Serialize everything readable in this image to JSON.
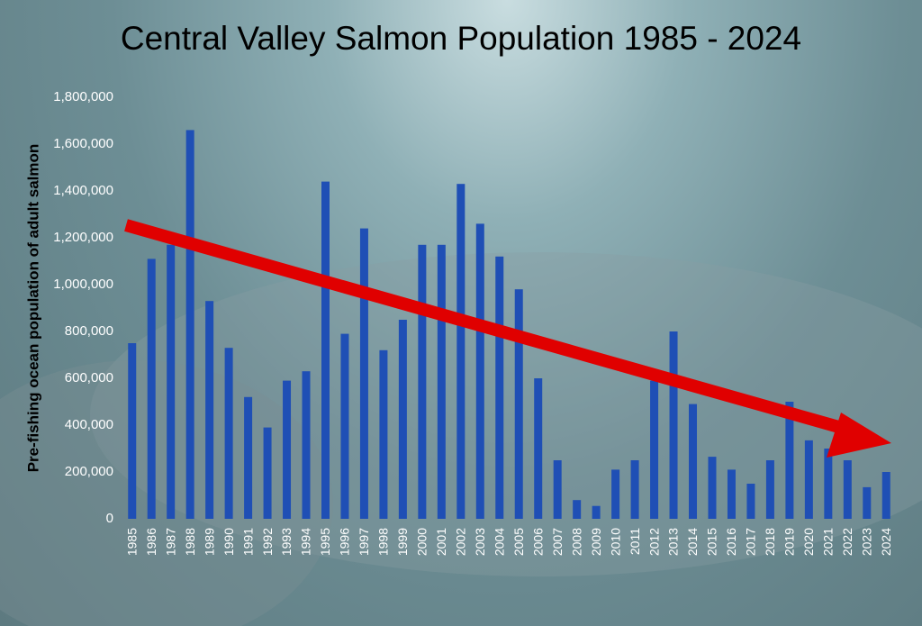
{
  "chart_data": {
    "type": "bar",
    "title": "Central Valley Salmon Population 1985 - 2024",
    "y_label": "Pre-fishing ocean population of adult salmon",
    "categories": [
      "1985",
      "1986",
      "1987",
      "1988",
      "1989",
      "1990",
      "1991",
      "1992",
      "1993",
      "1994",
      "1995",
      "1996",
      "1997",
      "1998",
      "1999",
      "2000",
      "2001",
      "2002",
      "2003",
      "2004",
      "2005",
      "2006",
      "2007",
      "2008",
      "2009",
      "2010",
      "2011",
      "2012",
      "2013",
      "2014",
      "2015",
      "2016",
      "2017",
      "2018",
      "2019",
      "2020",
      "2021",
      "2022",
      "2023",
      "2024"
    ],
    "values": [
      750000,
      1110000,
      1170000,
      1660000,
      930000,
      730000,
      520000,
      390000,
      590000,
      630000,
      1440000,
      790000,
      1240000,
      720000,
      850000,
      1170000,
      1170000,
      1430000,
      1260000,
      1120000,
      980000,
      600000,
      250000,
      80000,
      55000,
      210000,
      250000,
      590000,
      800000,
      490000,
      265000,
      210000,
      150000,
      250000,
      500000,
      335000,
      300000,
      250000,
      135000,
      200000
    ],
    "color": "#1f4fb5",
    "ylim": [
      0,
      1800000
    ],
    "yticks": [
      0,
      {
        "value": 200000,
        "label": "200,000"
      },
      {
        "value": 400000,
        "label": "400,000"
      },
      {
        "value": 600000,
        "label": "600,000"
      },
      {
        "value": 800000,
        "label": "800,000"
      },
      {
        "value": 1000000,
        "label": "1,000,000"
      },
      {
        "value": 1200000,
        "label": "1,200,000"
      },
      {
        "value": 1400000,
        "label": "1,400,000"
      },
      {
        "value": 1600000,
        "label": "1,600,000"
      },
      {
        "value": 1800000,
        "label": "1,800,000"
      }
    ],
    "grid": false
  }
}
